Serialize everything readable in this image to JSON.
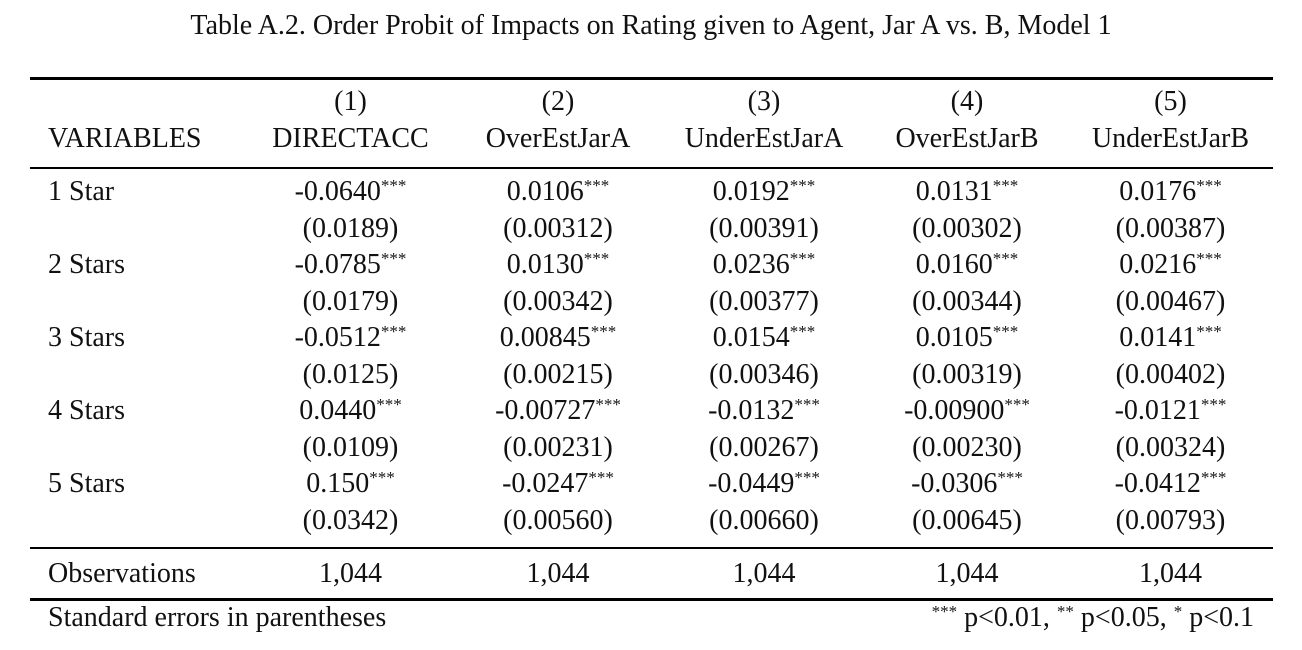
{
  "title": "Table A.2. Order Probit of Impacts on Rating given to Agent, Jar A vs. B, Model 1",
  "header": {
    "variables_label": "VARIABLES",
    "columns": [
      {
        "number": "(1)",
        "name": "DIRECTACC"
      },
      {
        "number": "(2)",
        "name": "OverEstJarA"
      },
      {
        "number": "(3)",
        "name": "UnderEstJarA"
      },
      {
        "number": "(4)",
        "name": "OverEstJarB"
      },
      {
        "number": "(5)",
        "name": "UnderEstJarB"
      }
    ]
  },
  "rows": [
    {
      "label": "1 Star",
      "coefs": [
        "-0.0640",
        "0.0106",
        "0.0192",
        "0.0131",
        "0.0176"
      ],
      "stars": [
        "***",
        "***",
        "***",
        "***",
        "***"
      ],
      "ses": [
        "(0.0189)",
        "(0.00312)",
        "(0.00391)",
        "(0.00302)",
        "(0.00387)"
      ]
    },
    {
      "label": "2 Stars",
      "coefs": [
        "-0.0785",
        "0.0130",
        "0.0236",
        "0.0160",
        "0.0216"
      ],
      "stars": [
        "***",
        "***",
        "***",
        "***",
        "***"
      ],
      "ses": [
        "(0.0179)",
        "(0.00342)",
        "(0.00377)",
        "(0.00344)",
        "(0.00467)"
      ]
    },
    {
      "label": "3 Stars",
      "coefs": [
        "-0.0512",
        "0.00845",
        "0.0154",
        "0.0105",
        "0.0141"
      ],
      "stars": [
        "***",
        "***",
        "***",
        "***",
        "***"
      ],
      "ses": [
        "(0.0125)",
        "(0.00215)",
        "(0.00346)",
        "(0.00319)",
        "(0.00402)"
      ]
    },
    {
      "label": "4 Stars",
      "coefs": [
        "0.0440",
        "-0.00727",
        "-0.0132",
        "-0.00900",
        "-0.0121"
      ],
      "stars": [
        "***",
        "***",
        "***",
        "***",
        "***"
      ],
      "ses": [
        "(0.0109)",
        "(0.00231)",
        "(0.00267)",
        "(0.00230)",
        "(0.00324)"
      ]
    },
    {
      "label": "5 Stars",
      "coefs": [
        "0.150",
        "-0.0247",
        "-0.0449",
        "-0.0306",
        "-0.0412"
      ],
      "stars": [
        "***",
        "***",
        "***",
        "***",
        "***"
      ],
      "ses": [
        "(0.0342)",
        "(0.00560)",
        "(0.00660)",
        "(0.00645)",
        "(0.00793)"
      ]
    }
  ],
  "observations": {
    "label": "Observations",
    "values": [
      "1,044",
      "1,044",
      "1,044",
      "1,044",
      "1,044"
    ]
  },
  "footer": {
    "left": "Standard errors in parentheses",
    "sig_stars": [
      "***",
      "**",
      "*"
    ],
    "sig_texts": [
      " p<0.01, ",
      " p<0.05, ",
      " p<0.1"
    ]
  }
}
